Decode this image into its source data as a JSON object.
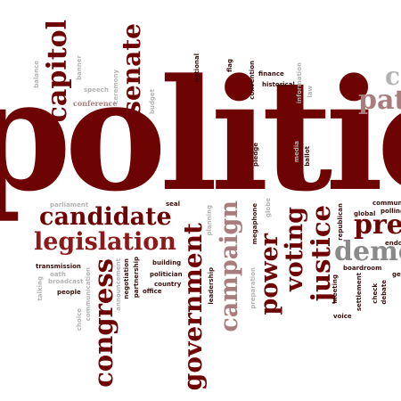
{
  "title": "politics",
  "words": {
    "politics": "politic",
    "capitol": "capitol",
    "senate": "senate",
    "candidate": "candidate",
    "legislation": "legislation",
    "congress": "congress",
    "government": "government",
    "campaign": "campaign",
    "power": "power",
    "voting": "voting",
    "justice": "justice",
    "democracy": "demo",
    "president": "pres",
    "patriot": "pat",
    "constitution": "c",
    "balance": "balance",
    "banner": "banner",
    "speech": "speech",
    "conference": "conference",
    "ceremony": "ceremony",
    "budget": "budget",
    "national": "national",
    "flag": "flag",
    "convention": "convention",
    "finance": "finance",
    "historical": "historical",
    "information": "information",
    "law": "law",
    "pledge": "pledge",
    "ballot": "ballot",
    "media": "media",
    "parliament": "parliament",
    "seal": "seal",
    "planning": "planning",
    "globe": "globe",
    "megaphone": "megaphone",
    "republican": "republican",
    "global": "global",
    "communication": "communi",
    "polling": "polling",
    "endorsement": "endo",
    "transmission": "transmission",
    "oath": "oath",
    "broadcast": "broadcast",
    "talking": "talking",
    "people": "people",
    "choice": "choice",
    "communications": "communication",
    "announcement": "announcement",
    "negotiation": "negotiation",
    "partnership": "partnership",
    "building": "building",
    "politician": "politician",
    "country": "country",
    "office": "office",
    "leadership": "leadership",
    "preparation": "preparation",
    "boardroom": "boardroom",
    "meeting": "meeting",
    "settlement": "settlement",
    "check": "check",
    "debate": "debate",
    "voice": "voice",
    "ge": "ge"
  },
  "colors": {
    "dark": "#6d0303",
    "pale": "#a97d7d",
    "gray": "#b3b3b3"
  }
}
